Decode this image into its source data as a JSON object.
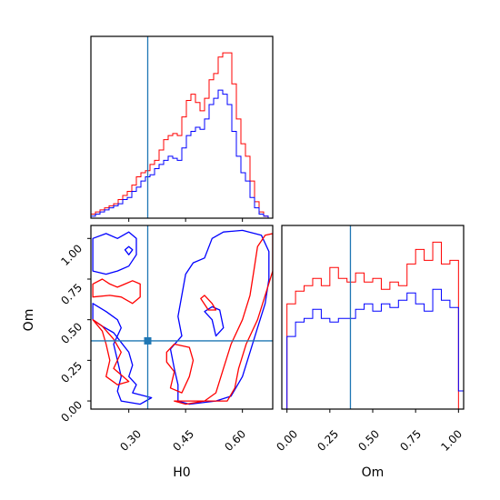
{
  "chart_data": [
    {
      "type": "histogram",
      "panel": "H0 marginal",
      "xlim": [
        0.2,
        0.68
      ],
      "truth": 0.35,
      "truth_color": "#1f77b4",
      "bins_x": [
        0.2,
        0.212,
        0.224,
        0.236,
        0.248,
        0.26,
        0.272,
        0.284,
        0.296,
        0.308,
        0.32,
        0.332,
        0.344,
        0.356,
        0.368,
        0.38,
        0.392,
        0.404,
        0.416,
        0.428,
        0.44,
        0.452,
        0.464,
        0.476,
        0.488,
        0.5,
        0.512,
        0.524,
        0.536,
        0.548,
        0.56,
        0.572,
        0.584,
        0.596,
        0.608,
        0.62,
        0.632,
        0.644,
        0.656,
        0.668,
        0.68
      ],
      "series": [
        {
          "color": "#ff0000",
          "values": [
            2,
            3,
            4,
            5,
            6,
            7,
            9,
            11,
            13,
            16,
            20,
            22,
            23,
            26,
            28,
            33,
            38,
            40,
            41,
            40,
            49,
            57,
            60,
            56,
            52,
            58,
            67,
            70,
            78,
            80,
            80,
            65,
            48,
            36,
            30,
            18,
            8,
            3,
            1,
            0
          ]
        },
        {
          "color": "#0000ff",
          "values": [
            1,
            2,
            3,
            4,
            5,
            6,
            7,
            9,
            10,
            13,
            15,
            18,
            20,
            21,
            24,
            26,
            28,
            30,
            29,
            28,
            34,
            40,
            42,
            44,
            43,
            48,
            55,
            58,
            62,
            60,
            55,
            42,
            30,
            22,
            18,
            10,
            5,
            2,
            1,
            0
          ]
        }
      ]
    },
    {
      "type": "histogram",
      "panel": "Om marginal",
      "xlim": [
        -0.03,
        1.03
      ],
      "xticks": [
        "0.00",
        "0.25",
        "0.50",
        "0.75",
        "1.00"
      ],
      "xlabel": "Om",
      "truth": 0.37,
      "truth_color": "#1f77b4",
      "bins_x": [
        -0.03,
        0.0,
        0.05,
        0.1,
        0.15,
        0.2,
        0.25,
        0.3,
        0.35,
        0.4,
        0.45,
        0.5,
        0.55,
        0.6,
        0.65,
        0.7,
        0.75,
        0.8,
        0.85,
        0.9,
        0.95,
        1.0,
        1.03
      ],
      "series": [
        {
          "color": "#ff0000",
          "values": [
            0,
            58,
            65,
            68,
            72,
            68,
            78,
            72,
            70,
            75,
            70,
            72,
            66,
            70,
            68,
            80,
            88,
            82,
            92,
            80,
            82,
            0
          ]
        },
        {
          "color": "#0000ff",
          "values": [
            0,
            40,
            48,
            50,
            55,
            50,
            48,
            50,
            50,
            55,
            58,
            54,
            58,
            56,
            60,
            64,
            58,
            54,
            66,
            60,
            56,
            10
          ]
        }
      ]
    },
    {
      "type": "contour",
      "panel": "Om vs H0",
      "xlim": [
        0.2,
        0.68
      ],
      "ylim": [
        -0.05,
        1.08
      ],
      "xticks": [
        "0.30",
        "0.45",
        "0.60"
      ],
      "yticks": [
        "0.00",
        "0.25",
        "0.50",
        "0.75",
        "1.00"
      ],
      "xlabel": "H0",
      "ylabel": "Om",
      "truth": [
        0.35,
        0.37
      ],
      "truth_color": "#1f77b4",
      "series": [
        {
          "color": "#0000ff",
          "contours": [
            [
              [
                0.205,
                1.0
              ],
              [
                0.24,
                1.03
              ],
              [
                0.27,
                1.0
              ],
              [
                0.3,
                1.04
              ],
              [
                0.32,
                1.0
              ],
              [
                0.32,
                0.9
              ],
              [
                0.3,
                0.83
              ],
              [
                0.27,
                0.8
              ],
              [
                0.24,
                0.78
              ],
              [
                0.205,
                0.8
              ]
            ],
            [
              [
                0.205,
                0.6
              ],
              [
                0.24,
                0.55
              ],
              [
                0.27,
                0.5
              ],
              [
                0.28,
                0.45
              ],
              [
                0.26,
                0.35
              ],
              [
                0.27,
                0.25
              ],
              [
                0.28,
                0.15
              ],
              [
                0.27,
                0.06
              ],
              [
                0.28,
                0.0
              ],
              [
                0.33,
                -0.02
              ],
              [
                0.36,
                0.02
              ],
              [
                0.31,
                0.05
              ],
              [
                0.32,
                0.1
              ],
              [
                0.3,
                0.15
              ],
              [
                0.31,
                0.22
              ],
              [
                0.3,
                0.3
              ],
              [
                0.28,
                0.36
              ],
              [
                0.26,
                0.42
              ],
              [
                0.23,
                0.46
              ],
              [
                0.205,
                0.5
              ]
            ],
            [
              [
                0.43,
                0.0
              ],
              [
                0.46,
                -0.02
              ],
              [
                0.53,
                0.0
              ],
              [
                0.57,
                0.03
              ],
              [
                0.6,
                0.15
              ],
              [
                0.62,
                0.3
              ],
              [
                0.64,
                0.45
              ],
              [
                0.66,
                0.6
              ],
              [
                0.67,
                0.75
              ],
              [
                0.67,
                0.92
              ],
              [
                0.65,
                1.02
              ],
              [
                0.6,
                1.05
              ],
              [
                0.55,
                1.04
              ],
              [
                0.52,
                1.0
              ],
              [
                0.5,
                0.88
              ],
              [
                0.47,
                0.85
              ],
              [
                0.45,
                0.78
              ],
              [
                0.44,
                0.65
              ],
              [
                0.43,
                0.52
              ],
              [
                0.44,
                0.4
              ],
              [
                0.41,
                0.32
              ],
              [
                0.42,
                0.2
              ],
              [
                0.43,
                0.1
              ]
            ],
            [
              [
                0.52,
                0.5
              ],
              [
                0.53,
                0.4
              ],
              [
                0.55,
                0.45
              ],
              [
                0.54,
                0.56
              ],
              [
                0.52,
                0.58
              ],
              [
                0.5,
                0.55
              ]
            ],
            [
              [
                0.29,
                0.93
              ],
              [
                0.3,
                0.9
              ],
              [
                0.31,
                0.93
              ],
              [
                0.3,
                0.95
              ]
            ]
          ]
        },
        {
          "color": "#ff0000",
          "contours": [
            [
              [
                0.205,
                0.72
              ],
              [
                0.23,
                0.75
              ],
              [
                0.25,
                0.72
              ],
              [
                0.27,
                0.7
              ],
              [
                0.29,
                0.72
              ],
              [
                0.31,
                0.74
              ],
              [
                0.33,
                0.72
              ],
              [
                0.33,
                0.64
              ],
              [
                0.31,
                0.6
              ],
              [
                0.28,
                0.64
              ],
              [
                0.25,
                0.65
              ],
              [
                0.205,
                0.64
              ]
            ],
            [
              [
                0.205,
                0.5
              ],
              [
                0.23,
                0.43
              ],
              [
                0.24,
                0.35
              ],
              [
                0.25,
                0.25
              ],
              [
                0.24,
                0.15
              ],
              [
                0.27,
                0.1
              ],
              [
                0.3,
                0.12
              ],
              [
                0.26,
                0.2
              ],
              [
                0.28,
                0.3
              ],
              [
                0.26,
                0.38
              ],
              [
                0.23,
                0.46
              ]
            ],
            [
              [
                0.42,
                0.0
              ],
              [
                0.45,
                -0.02
              ],
              [
                0.5,
                0.0
              ],
              [
                0.53,
                0.05
              ],
              [
                0.55,
                0.2
              ],
              [
                0.57,
                0.35
              ],
              [
                0.6,
                0.5
              ],
              [
                0.62,
                0.65
              ],
              [
                0.63,
                0.8
              ],
              [
                0.64,
                0.95
              ],
              [
                0.66,
                1.02
              ],
              [
                0.68,
                1.03
              ],
              [
                0.68,
                0.8
              ],
              [
                0.66,
                0.65
              ],
              [
                0.64,
                0.5
              ],
              [
                0.61,
                0.35
              ],
              [
                0.59,
                0.2
              ],
              [
                0.58,
                0.08
              ],
              [
                0.56,
                0.0
              ]
            ],
            [
              [
                0.4,
                0.3
              ],
              [
                0.42,
                0.35
              ],
              [
                0.46,
                0.33
              ],
              [
                0.47,
                0.25
              ],
              [
                0.46,
                0.15
              ],
              [
                0.44,
                0.05
              ],
              [
                0.41,
                0.08
              ],
              [
                0.42,
                0.18
              ],
              [
                0.4,
                0.24
              ]
            ],
            [
              [
                0.49,
                0.63
              ],
              [
                0.51,
                0.56
              ],
              [
                0.53,
                0.56
              ],
              [
                0.52,
                0.6
              ],
              [
                0.5,
                0.65
              ]
            ]
          ]
        }
      ]
    }
  ]
}
